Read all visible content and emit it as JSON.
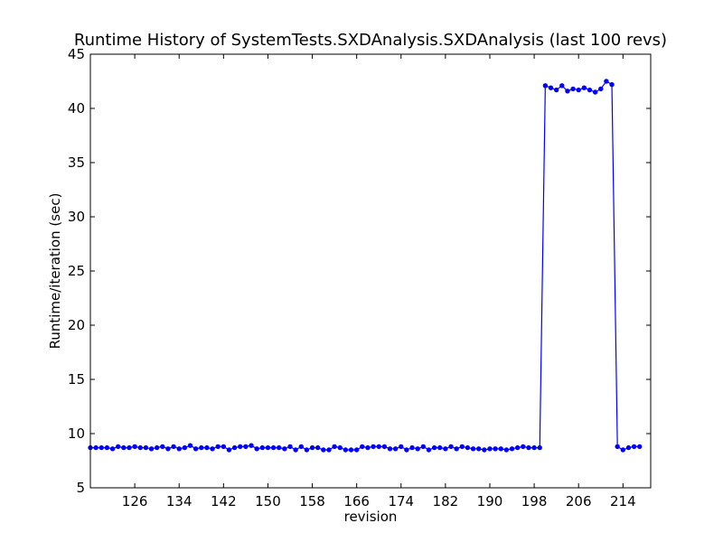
{
  "chart_data": {
    "type": "line",
    "title": "Runtime History of SystemTests.SXDAnalysis.SXDAnalysis (last 100 revs)",
    "xlabel": "revision",
    "ylabel": "Runtime/iteration (sec)",
    "xlim": [
      118,
      219
    ],
    "ylim": [
      5,
      45
    ],
    "xticks": [
      126,
      134,
      142,
      150,
      158,
      166,
      174,
      182,
      190,
      198,
      206,
      214
    ],
    "yticks": [
      5,
      10,
      15,
      20,
      25,
      30,
      35,
      40,
      45
    ],
    "grid": false,
    "legend": "none",
    "series_color": "#0000ff",
    "series": [
      {
        "x": [
          118,
          119,
          120,
          121,
          122,
          123,
          124,
          125,
          126,
          127,
          128,
          129,
          130,
          131,
          132,
          133,
          134,
          135,
          136,
          137,
          138,
          139,
          140,
          141,
          142,
          143,
          144,
          145,
          146,
          147,
          148,
          149,
          150,
          151,
          152,
          153,
          154,
          155,
          156,
          157,
          158,
          159,
          160,
          161,
          162,
          163,
          164,
          165,
          166,
          167,
          168,
          169,
          170,
          171,
          172,
          173,
          174,
          175,
          176,
          177,
          178,
          179,
          180,
          181,
          182,
          183,
          184,
          185,
          186,
          187,
          188,
          189,
          190,
          191,
          192,
          193,
          194,
          195,
          196,
          197,
          198,
          199,
          200,
          201,
          202,
          203,
          204,
          205,
          206,
          207,
          208,
          209,
          210,
          211,
          212,
          213,
          214,
          215,
          216,
          217
        ],
        "y": [
          8.7,
          8.7,
          8.7,
          8.7,
          8.6,
          8.8,
          8.7,
          8.7,
          8.8,
          8.7,
          8.7,
          8.6,
          8.7,
          8.8,
          8.6,
          8.8,
          8.6,
          8.7,
          8.9,
          8.6,
          8.7,
          8.7,
          8.6,
          8.8,
          8.8,
          8.5,
          8.7,
          8.8,
          8.8,
          8.9,
          8.6,
          8.7,
          8.7,
          8.7,
          8.7,
          8.6,
          8.8,
          8.5,
          8.8,
          8.5,
          8.7,
          8.7,
          8.5,
          8.5,
          8.8,
          8.7,
          8.5,
          8.5,
          8.5,
          8.8,
          8.7,
          8.8,
          8.8,
          8.8,
          8.6,
          8.6,
          8.8,
          8.5,
          8.7,
          8.6,
          8.8,
          8.5,
          8.7,
          8.7,
          8.6,
          8.8,
          8.6,
          8.8,
          8.7,
          8.6,
          8.6,
          8.5,
          8.6,
          8.6,
          8.6,
          8.5,
          8.6,
          8.7,
          8.8,
          8.7,
          8.7,
          8.7,
          42.1,
          41.9,
          41.7,
          42.1,
          41.6,
          41.8,
          41.7,
          41.9,
          41.7,
          41.5,
          41.8,
          42.5,
          42.2,
          8.8,
          8.5,
          8.7,
          8.8,
          8.8
        ]
      }
    ]
  }
}
